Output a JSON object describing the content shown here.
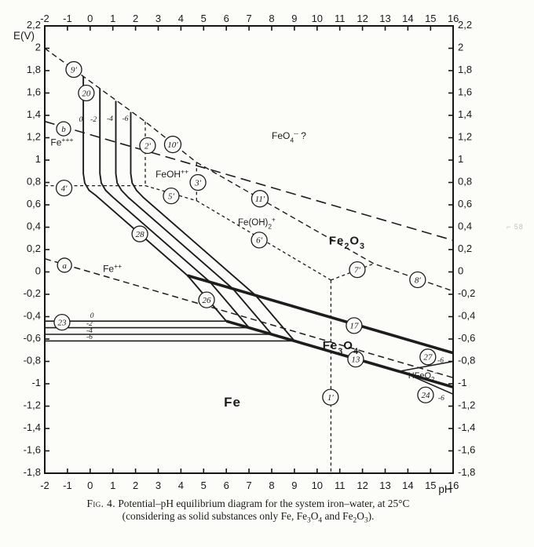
{
  "figure": {
    "e_axis_label": "E(V)",
    "ph_axis_label": "pH",
    "caption": {
      "line1_prefix": "Fig. 4.",
      "line1_rest": "Potential–pH equilibrium diagram for the system iron–water, at 25°C",
      "line2": "(considering as solid substances only Fe, Fe_{3}O_{4} and Fe_{2}O_{3})."
    },
    "artifact_text": "⌐ 58"
  },
  "chart_data": {
    "type": "line",
    "title": "Potential–pH equilibrium diagram for the system iron–water, at 25°C",
    "xlabel": "pH",
    "ylabel": "E(V)",
    "xlim": [
      -2,
      16
    ],
    "ylim": [
      -1.8,
      2.2
    ],
    "grid": false,
    "x_ticks": [
      "-2",
      "-1",
      "0",
      "1",
      "2",
      "3",
      "4",
      "5",
      "6",
      "7",
      "8",
      "9",
      "10",
      "11",
      "12",
      "13",
      "14",
      "15",
      "16"
    ],
    "y_ticks": [
      {
        "v": 2.2,
        "label": "2,2"
      },
      {
        "v": 2.0,
        "label": "2"
      },
      {
        "v": 1.8,
        "label": "1,8"
      },
      {
        "v": 1.6,
        "label": "1,6"
      },
      {
        "v": 1.4,
        "label": "1,4"
      },
      {
        "v": 1.2,
        "label": "1,2"
      },
      {
        "v": 1.0,
        "label": "1"
      },
      {
        "v": 0.8,
        "label": "0,8"
      },
      {
        "v": 0.6,
        "label": "0,6"
      },
      {
        "v": 0.4,
        "label": "0,4"
      },
      {
        "v": 0.2,
        "label": "0,2"
      },
      {
        "v": 0.0,
        "label": "0"
      },
      {
        "v": -0.2,
        "label": "-0,2"
      },
      {
        "v": -0.4,
        "label": "-0,4"
      },
      {
        "v": -0.6,
        "label": "-0,6"
      },
      {
        "v": -0.8,
        "label": "-0,8"
      },
      {
        "v": -1.0,
        "label": "-1"
      },
      {
        "v": -1.2,
        "label": "-1,2"
      },
      {
        "v": -1.4,
        "label": "-1,4"
      },
      {
        "v": -1.6,
        "label": "-1,6"
      },
      {
        "v": -1.8,
        "label": "-1,8"
      }
    ],
    "series": [
      {
        "name": "line-b-oxygen-water",
        "style": "dash-long",
        "points": [
          [
            -2,
            1.346
          ],
          [
            16,
            0.282
          ]
        ]
      },
      {
        "name": "line-a-hydrogen-water",
        "style": "dash-medium",
        "points": [
          [
            -2,
            0.118
          ],
          [
            16,
            -0.946
          ]
        ]
      },
      {
        "name": "line-9p-10p-11p-8p-ferrate-boundary",
        "style": "dash-med2",
        "points": [
          [
            -2,
            2.0
          ],
          [
            2.43,
            1.344
          ],
          [
            4.69,
            0.98
          ],
          [
            12.5,
            0.074
          ],
          [
            16,
            -0.172
          ]
        ]
      },
      {
        "name": "line-4p-fe3-fe2",
        "style": "dash-fine",
        "points": [
          [
            -2,
            0.771
          ],
          [
            2.43,
            0.771
          ]
        ]
      },
      {
        "name": "line-2p-fe3-feoh",
        "style": "dash-fine",
        "points": [
          [
            2.43,
            1.344
          ],
          [
            2.43,
            0.771
          ]
        ]
      },
      {
        "name": "line-5p-feoh-fe2",
        "style": "dash-fine",
        "points": [
          [
            2.43,
            0.771
          ],
          [
            4.69,
            0.637
          ]
        ]
      },
      {
        "name": "line-3p-feoh-feoh2",
        "style": "dash-fine",
        "points": [
          [
            4.69,
            0.98
          ],
          [
            4.69,
            0.637
          ]
        ]
      },
      {
        "name": "line-6p-feoh2-fe2",
        "style": "dash-fine",
        "points": [
          [
            4.69,
            0.637
          ],
          [
            10.61,
            -0.073
          ]
        ]
      },
      {
        "name": "line-7p",
        "style": "dash-fine",
        "points": [
          [
            10.61,
            -0.073
          ],
          [
            12.5,
            0.074
          ]
        ]
      },
      {
        "name": "line-1p-fe2-hfeo2",
        "style": "dash-fine",
        "points": [
          [
            10.61,
            -0.073
          ],
          [
            10.61,
            -1.8
          ]
        ]
      },
      {
        "name": "line-20-28-26-log0",
        "style": "solid",
        "points": [
          [
            -0.3,
            1.75
          ],
          [
            -0.3,
            0.88
          ],
          [
            -0.24,
            0.795
          ],
          [
            -0.05,
            0.73
          ],
          [
            0.25,
            0.684
          ],
          [
            4.29,
            -0.032
          ],
          [
            6.0,
            -0.44
          ]
        ]
      },
      {
        "name": "line-20-28-26-log-2",
        "style": "solid",
        "points": [
          [
            0.43,
            1.64
          ],
          [
            0.43,
            0.88
          ],
          [
            0.49,
            0.795
          ],
          [
            0.68,
            0.73
          ],
          [
            0.98,
            0.672
          ],
          [
            5.29,
            -0.092
          ],
          [
            7.0,
            -0.499
          ]
        ]
      },
      {
        "name": "line-20-28-26-log-4",
        "style": "solid",
        "points": [
          [
            1.13,
            1.53
          ],
          [
            1.13,
            0.88
          ],
          [
            1.19,
            0.795
          ],
          [
            1.38,
            0.73
          ],
          [
            1.68,
            0.666
          ],
          [
            6.29,
            -0.151
          ],
          [
            8.0,
            -0.558
          ]
        ]
      },
      {
        "name": "line-20-28-26-log-6",
        "style": "solid",
        "points": [
          [
            1.79,
            1.43
          ],
          [
            1.79,
            0.88
          ],
          [
            1.85,
            0.795
          ],
          [
            2.04,
            0.73
          ],
          [
            2.34,
            0.667
          ],
          [
            7.29,
            -0.21
          ],
          [
            9.0,
            -0.617
          ]
        ]
      },
      {
        "name": "line-23-log0",
        "style": "solid2",
        "points": [
          [
            -2,
            -0.44
          ],
          [
            6.0,
            -0.44
          ]
        ]
      },
      {
        "name": "line-23-log-2",
        "style": "solid2",
        "points": [
          [
            -2,
            -0.499
          ],
          [
            7.0,
            -0.499
          ]
        ]
      },
      {
        "name": "line-23-log-4",
        "style": "solid2",
        "points": [
          [
            -2,
            -0.558
          ],
          [
            8.0,
            -0.558
          ]
        ]
      },
      {
        "name": "line-23-log-6",
        "style": "solid2",
        "points": [
          [
            -2,
            -0.617
          ],
          [
            9.0,
            -0.617
          ]
        ]
      },
      {
        "name": "line-17-fe3o4-fe2o3",
        "style": "bold",
        "points": [
          [
            4.29,
            -0.032
          ],
          [
            16,
            -0.725
          ]
        ]
      },
      {
        "name": "line-13-fe-fe3o4",
        "style": "bold",
        "points": [
          [
            6.0,
            -0.44
          ],
          [
            16,
            -1.03
          ]
        ]
      },
      {
        "name": "line-27-log-6",
        "style": "thin",
        "points": [
          [
            13.67,
            -0.887
          ],
          [
            16,
            -0.8
          ]
        ]
      },
      {
        "name": "line-24-log-6",
        "style": "thin",
        "points": [
          [
            13.67,
            -0.887
          ],
          [
            16,
            -1.093
          ]
        ]
      }
    ],
    "circled_labels": [
      {
        "id": "9′",
        "ph": -0.72,
        "e": 1.81
      },
      {
        "id": "20",
        "ph": -0.17,
        "e": 1.6
      },
      {
        "id": "b",
        "ph": -1.17,
        "e": 1.28
      },
      {
        "id": "2′",
        "ph": 2.53,
        "e": 1.13
      },
      {
        "id": "10′",
        "ph": 3.64,
        "e": 1.14
      },
      {
        "id": "4′",
        "ph": -1.15,
        "e": 0.75
      },
      {
        "id": "3′",
        "ph": 4.75,
        "e": 0.8
      },
      {
        "id": "5′",
        "ph": 3.57,
        "e": 0.68
      },
      {
        "id": "11′",
        "ph": 7.48,
        "e": 0.655
      },
      {
        "id": "6′",
        "ph": 7.45,
        "e": 0.285
      },
      {
        "id": "28",
        "ph": 2.19,
        "e": 0.34
      },
      {
        "id": "a",
        "ph": -1.13,
        "e": 0.06
      },
      {
        "id": "7′",
        "ph": 11.77,
        "e": 0.02
      },
      {
        "id": "8′",
        "ph": 14.43,
        "e": -0.07
      },
      {
        "id": "26",
        "ph": 5.13,
        "e": -0.25
      },
      {
        "id": "23",
        "ph": -1.24,
        "e": -0.45
      },
      {
        "id": "17",
        "ph": 11.63,
        "e": -0.48
      },
      {
        "id": "13",
        "ph": 11.7,
        "e": -0.78
      },
      {
        "id": "27",
        "ph": 14.88,
        "e": -0.76
      },
      {
        "id": "24",
        "ph": 14.78,
        "e": -1.1
      },
      {
        "id": "1′",
        "ph": 10.59,
        "e": -1.12
      }
    ],
    "region_labels": [
      {
        "spec": "Fe^{+++}",
        "ph": -1.24,
        "e": 1.16,
        "size": 12,
        "bold": false
      },
      {
        "spec": "Fe^{++}",
        "ph": 0.98,
        "e": 0.03,
        "size": 12,
        "bold": false
      },
      {
        "spec": "FeOH^{++}",
        "ph": 3.61,
        "e": 0.874,
        "size": 12,
        "bold": false
      },
      {
        "spec": "Fe(OH)_{2}^{+}",
        "ph": 7.34,
        "e": 0.446,
        "size": 11.5,
        "bold": false
      },
      {
        "spec": "FeO_{4}^{--} ?",
        "ph": 8.76,
        "e": 1.218,
        "size": 12,
        "bold": false
      },
      {
        "spec": "Fe_{2}O_{3}",
        "ph": 11.32,
        "e": 0.284,
        "size": 15,
        "bold": true
      },
      {
        "spec": "Fe_{3}O_{4}",
        "ph": 11.04,
        "e": -0.656,
        "size": 15,
        "bold": true
      },
      {
        "spec": "HFeO_{2}^{-}",
        "ph": 14.64,
        "e": -0.923,
        "size": 11,
        "bold": false
      },
      {
        "spec": "Fe",
        "ph": 6.27,
        "e": -1.162,
        "size": 17,
        "bold": true
      }
    ],
    "concentration_labels": [
      {
        "text": "0",
        "ph": -0.41,
        "e": 1.365
      },
      {
        "text": "-2",
        "ph": 0.15,
        "e": 1.365
      },
      {
        "text": "-4",
        "ph": 0.87,
        "e": 1.372
      },
      {
        "text": "-6",
        "ph": 1.55,
        "e": 1.372
      },
      {
        "text": "0",
        "ph": 0.08,
        "e": -0.389
      },
      {
        "text": "-2",
        "ph": -0.03,
        "e": -0.459
      },
      {
        "text": "-4",
        "ph": -0.03,
        "e": -0.523
      },
      {
        "text": "-6",
        "ph": -0.03,
        "e": -0.579
      },
      {
        "text": "-6",
        "ph": 15.44,
        "e": -0.789
      },
      {
        "text": "-6",
        "ph": 15.47,
        "e": -1.126
      }
    ]
  }
}
